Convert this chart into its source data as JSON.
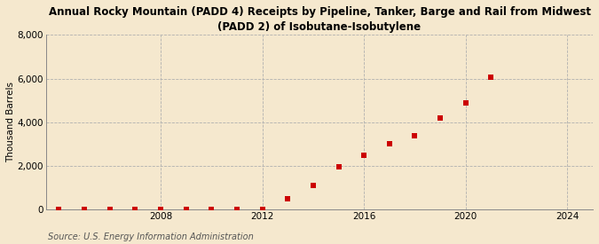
{
  "years": [
    2004,
    2005,
    2006,
    2007,
    2008,
    2009,
    2010,
    2011,
    2012,
    2013,
    2014,
    2015,
    2016,
    2017,
    2018,
    2019,
    2020,
    2021
  ],
  "values": [
    10,
    20,
    5,
    20,
    10,
    20,
    10,
    5,
    10,
    500,
    1100,
    1950,
    2500,
    3000,
    3400,
    4200,
    4900,
    6050
  ],
  "marker_color": "#cc0000",
  "marker_size": 18,
  "title_line1": "Annual Rocky Mountain (PADD 4) Receipts by Pipeline, Tanker, Barge and Rail from Midwest",
  "title_line2": "(PADD 2) of Isobutane-Isobutylene",
  "ylabel": "Thousand Barrels",
  "xlim": [
    2003.5,
    2025
  ],
  "ylim": [
    0,
    8000
  ],
  "yticks": [
    0,
    2000,
    4000,
    6000,
    8000
  ],
  "ytick_labels": [
    "0",
    "2,000",
    "4,000",
    "6,000",
    "8,000"
  ],
  "xticks": [
    2008,
    2012,
    2016,
    2020,
    2024
  ],
  "background_color": "#f5e8ce",
  "grid_color": "#b0b0b0",
  "source_text": "Source: U.S. Energy Information Administration",
  "title_fontsize": 8.5,
  "axis_fontsize": 7.5,
  "source_fontsize": 7
}
